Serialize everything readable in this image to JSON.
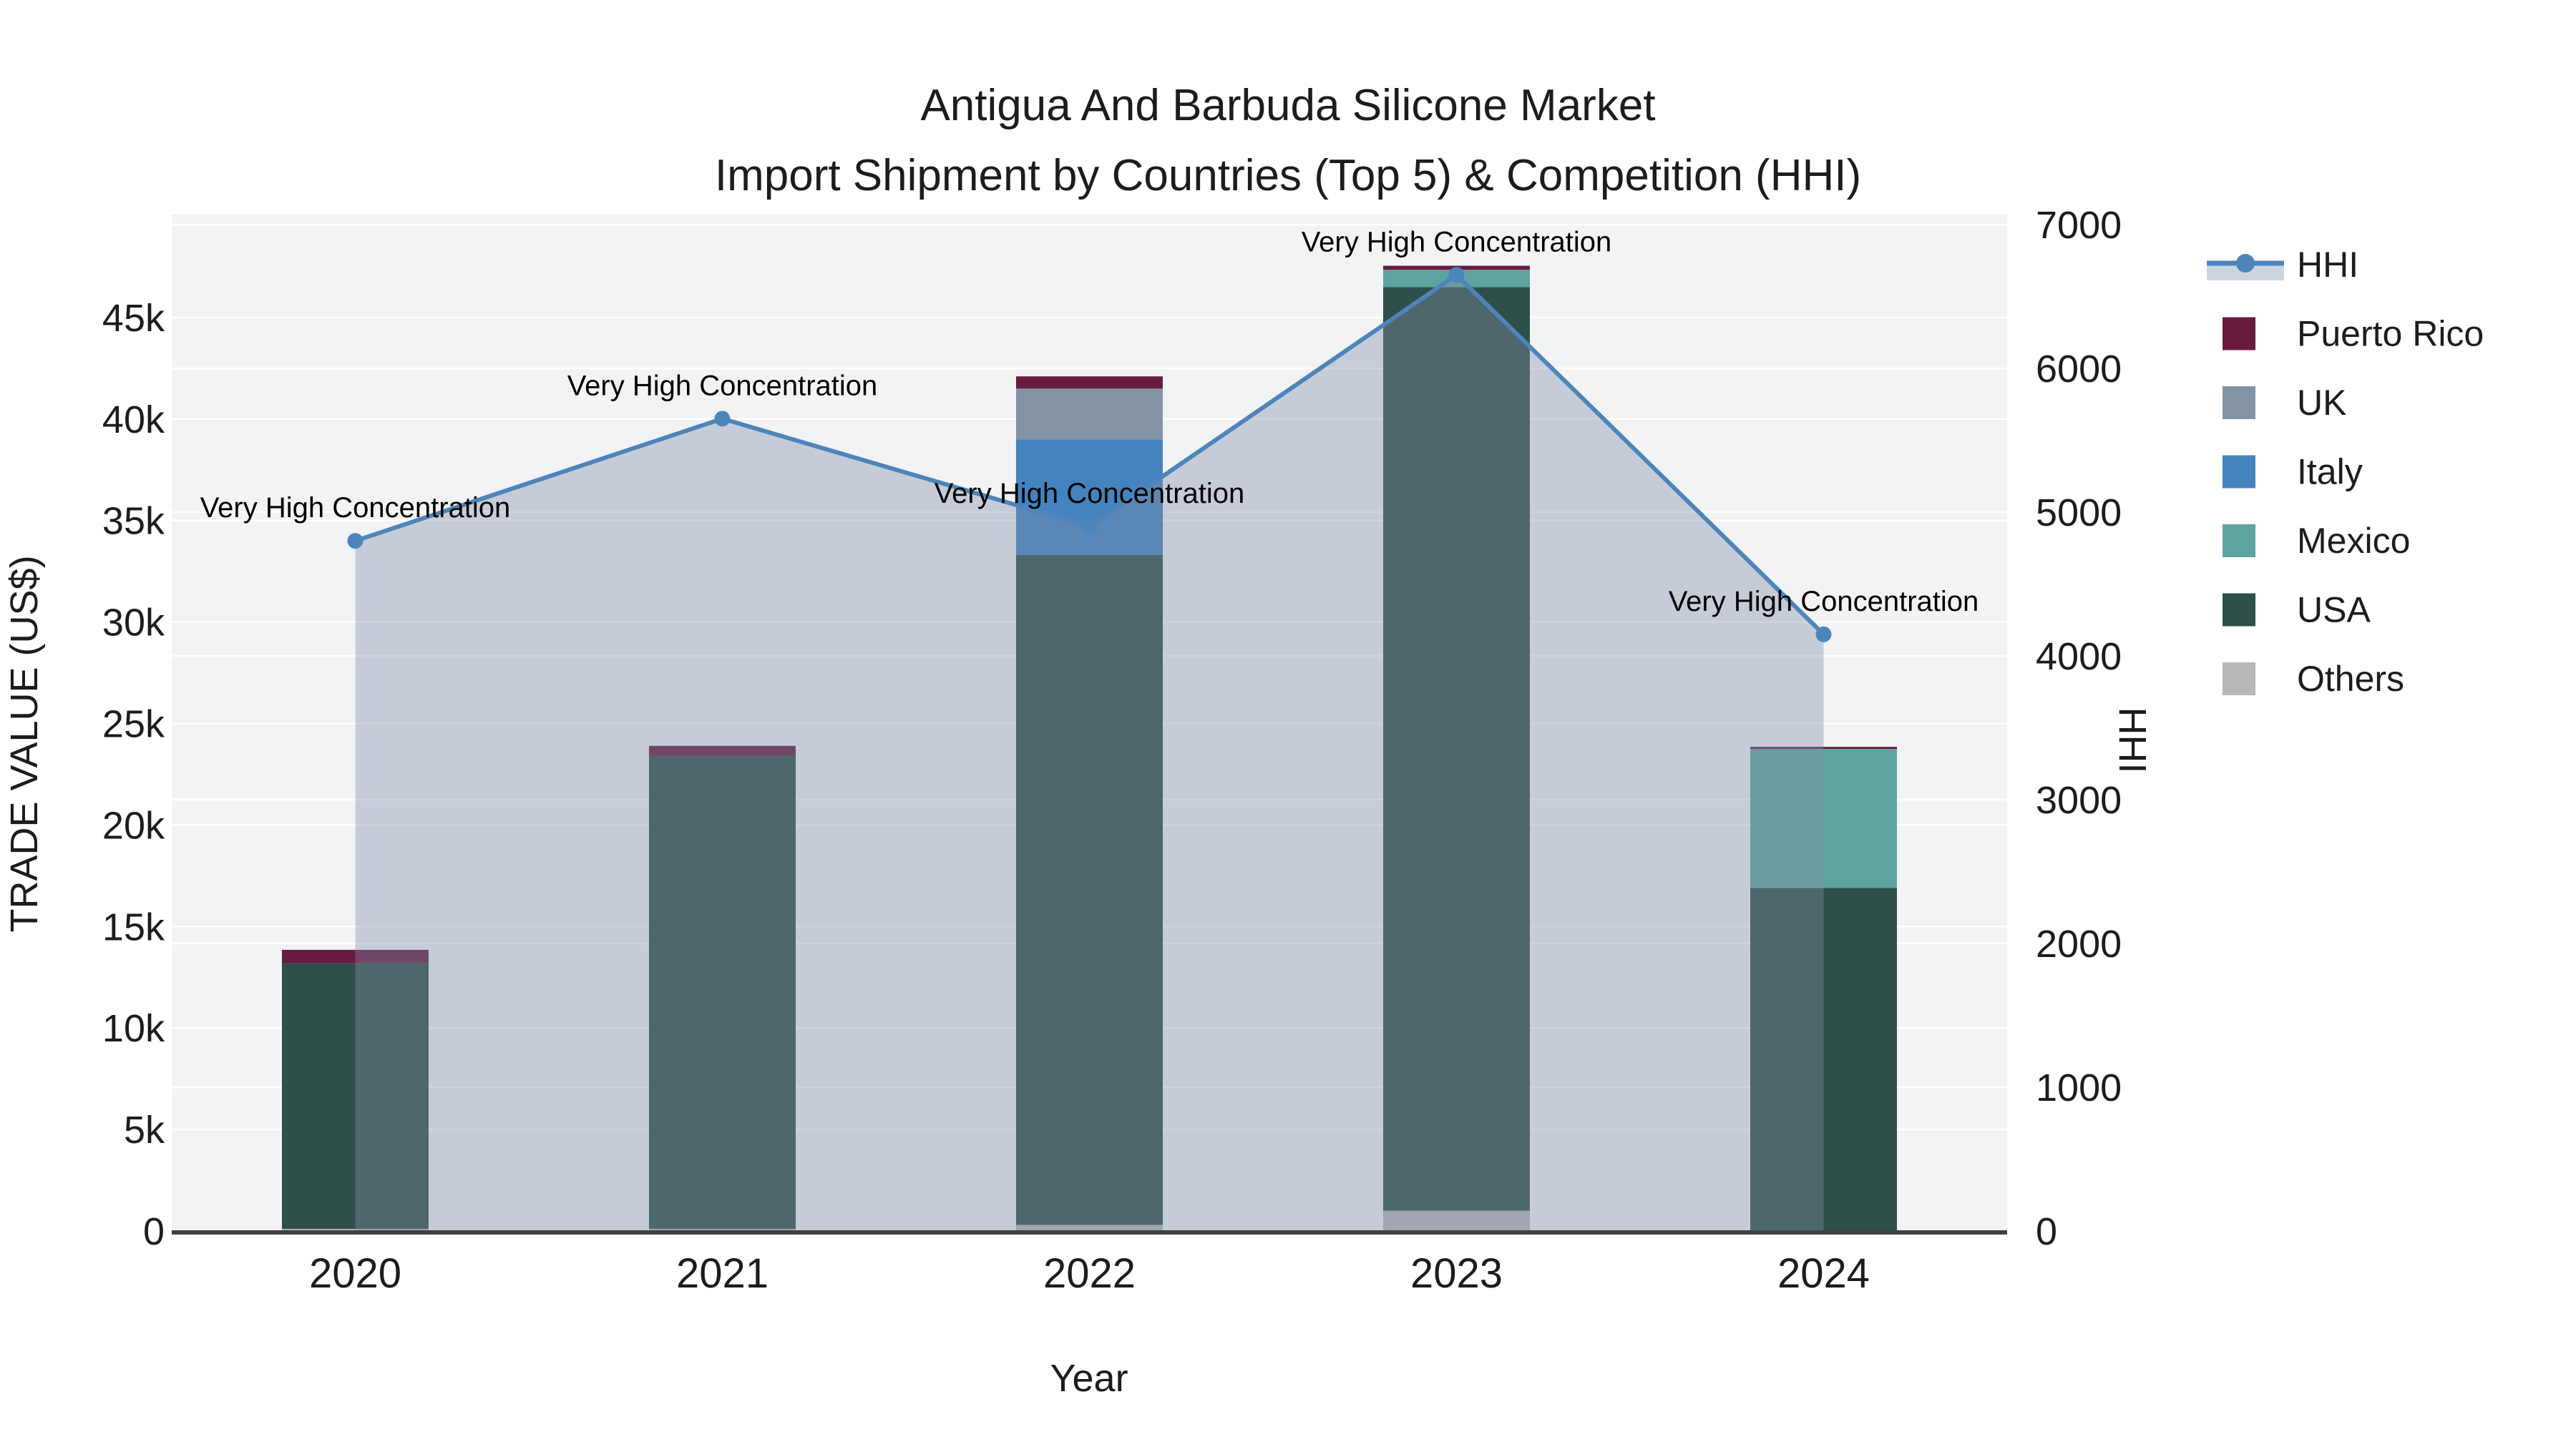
{
  "title": {
    "line1": "Antigua And Barbuda Silicone Market",
    "line2": "Import Shipment by Countries (Top 5) & Competition (HHI)"
  },
  "axes": {
    "x": {
      "title": "Year",
      "categories": [
        "2020",
        "2021",
        "2022",
        "2023",
        "2024"
      ]
    },
    "y_left": {
      "title": "TRADE VALUE (US$)",
      "tick_labels": [
        "0",
        "5k",
        "10k",
        "15k",
        "20k",
        "25k",
        "30k",
        "35k",
        "40k",
        "45k"
      ],
      "tick_values": [
        0,
        5000,
        10000,
        15000,
        20000,
        25000,
        30000,
        35000,
        40000,
        45000
      ]
    },
    "y_right": {
      "title": "HHI",
      "tick_labels": [
        "0",
        "1000",
        "2000",
        "3000",
        "4000",
        "5000",
        "6000",
        "7000"
      ],
      "tick_values": [
        0,
        1000,
        2000,
        3000,
        4000,
        5000,
        6000,
        7000
      ]
    }
  },
  "legend": {
    "items": [
      {
        "label": "HHI",
        "type": "line",
        "color": "#4D85BB",
        "band_color": "#CDD5DE"
      },
      {
        "label": "Puerto Rico",
        "type": "swatch",
        "color": "#681B3F"
      },
      {
        "label": "UK",
        "type": "swatch",
        "color": "#8393A4"
      },
      {
        "label": "Italy",
        "type": "swatch",
        "color": "#4583BE"
      },
      {
        "label": "Mexico",
        "type": "swatch",
        "color": "#5EA39F"
      },
      {
        "label": "USA",
        "type": "swatch",
        "color": "#2F4F4A"
      },
      {
        "label": "Others",
        "type": "swatch",
        "color": "#B5B7B9"
      }
    ]
  },
  "chart_data": {
    "type": "bar+line",
    "categories": [
      "2020",
      "2021",
      "2022",
      "2023",
      "2024"
    ],
    "bar_stack_order_bottom_to_top": [
      "Others",
      "USA",
      "Mexico",
      "Italy",
      "UK",
      "Puerto Rico"
    ],
    "series": [
      {
        "name": "Others",
        "color": "#B5B7B9",
        "values": [
          100,
          100,
          300,
          1000,
          0
        ]
      },
      {
        "name": "USA",
        "color": "#2F4F4A",
        "values": [
          13100,
          23300,
          33000,
          45500,
          16900
        ]
      },
      {
        "name": "Mexico",
        "color": "#5EA39F",
        "values": [
          0,
          0,
          0,
          850,
          6850
        ]
      },
      {
        "name": "Italy",
        "color": "#4583BE",
        "values": [
          0,
          0,
          5700,
          0,
          0
        ]
      },
      {
        "name": "UK",
        "color": "#8393A4",
        "values": [
          0,
          0,
          2500,
          0,
          0
        ]
      },
      {
        "name": "Puerto Rico",
        "color": "#681B3F",
        "values": [
          650,
          500,
          600,
          200,
          100
        ]
      }
    ],
    "bar_totals": [
      13850,
      23900,
      42100,
      47550,
      23850
    ],
    "line_series": {
      "name": "HHI",
      "color": "#4D85BB",
      "area_color": "rgba(127,142,168,0.38)",
      "values": [
        4800,
        5650,
        4900,
        6650,
        4150
      ]
    },
    "annotations": [
      "Very High Concentration",
      "Very High Concentration",
      "Very High Concentration",
      "Very High Concentration",
      "Very High Concentration"
    ],
    "xlabel": "Year",
    "ylabel_left": "TRADE VALUE (US$)",
    "ylabel_right": "HHI",
    "ylim_left": [
      0,
      50000
    ],
    "ylim_right": [
      0,
      7070
    ],
    "grid": true,
    "legend_position": "right",
    "plot_bg": "#F2F3F4",
    "gridline_color": "#FFFFFF",
    "axisline_color": "#414141"
  }
}
